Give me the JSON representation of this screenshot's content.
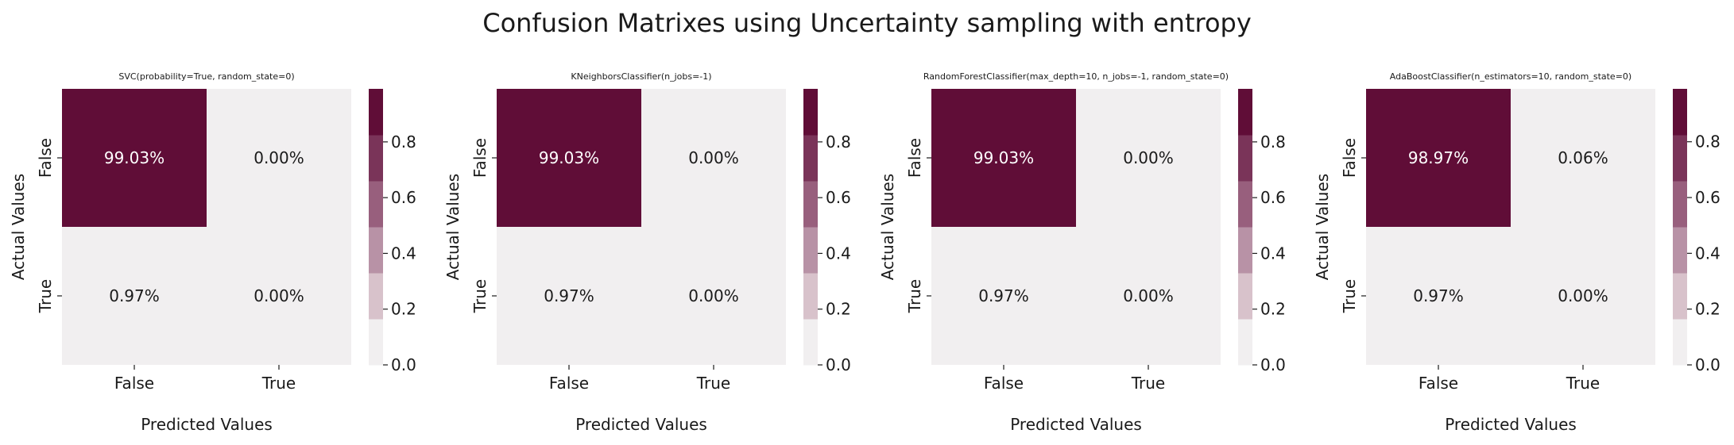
{
  "figure": {
    "title": "Confusion Matrixes using Uncertainty sampling with entropy"
  },
  "palette": {
    "low": "#f1eff0",
    "high": "#600d37",
    "bands": [
      "#f1eff0",
      "#d8c2cb",
      "#b892a6",
      "#985f7d",
      "#7a3459",
      "#600d37"
    ]
  },
  "chart_data": [
    {
      "type": "heatmap",
      "title": "SVC(probability=True, random_state=0)",
      "xlabel": "Predicted Values",
      "ylabel": "Actual Values",
      "x_categories": [
        "False",
        "True"
      ],
      "y_categories": [
        "False",
        "True"
      ],
      "values": [
        [
          0.9903,
          0.0
        ],
        [
          0.0097,
          0.0
        ]
      ],
      "cell_labels": [
        [
          "99.03%",
          "0.00%"
        ],
        [
          "0.97%",
          "0.00%"
        ]
      ],
      "colorbar": {
        "range": [
          0.0,
          0.9903
        ],
        "ticks": [
          "0.0",
          "0.2",
          "0.4",
          "0.6",
          "0.8"
        ]
      }
    },
    {
      "type": "heatmap",
      "title": "KNeighborsClassifier(n_jobs=-1)",
      "xlabel": "Predicted Values",
      "ylabel": "Actual Values",
      "x_categories": [
        "False",
        "True"
      ],
      "y_categories": [
        "False",
        "True"
      ],
      "values": [
        [
          0.9903,
          0.0
        ],
        [
          0.0097,
          0.0
        ]
      ],
      "cell_labels": [
        [
          "99.03%",
          "0.00%"
        ],
        [
          "0.97%",
          "0.00%"
        ]
      ],
      "colorbar": {
        "range": [
          0.0,
          0.9903
        ],
        "ticks": [
          "0.0",
          "0.2",
          "0.4",
          "0.6",
          "0.8"
        ]
      }
    },
    {
      "type": "heatmap",
      "title": "RandomForestClassifier(max_depth=10, n_jobs=-1, random_state=0)",
      "xlabel": "Predicted Values",
      "ylabel": "Actual Values",
      "x_categories": [
        "False",
        "True"
      ],
      "y_categories": [
        "False",
        "True"
      ],
      "values": [
        [
          0.9903,
          0.0
        ],
        [
          0.0097,
          0.0
        ]
      ],
      "cell_labels": [
        [
          "99.03%",
          "0.00%"
        ],
        [
          "0.97%",
          "0.00%"
        ]
      ],
      "colorbar": {
        "range": [
          0.0,
          0.9903
        ],
        "ticks": [
          "0.0",
          "0.2",
          "0.4",
          "0.6",
          "0.8"
        ]
      }
    },
    {
      "type": "heatmap",
      "title": "AdaBoostClassifier(n_estimators=10, random_state=0)",
      "xlabel": "Predicted Values",
      "ylabel": "Actual Values",
      "x_categories": [
        "False",
        "True"
      ],
      "y_categories": [
        "False",
        "True"
      ],
      "values": [
        [
          0.9897,
          0.0006
        ],
        [
          0.0097,
          0.0
        ]
      ],
      "cell_labels": [
        [
          "98.97%",
          "0.06%"
        ],
        [
          "0.97%",
          "0.00%"
        ]
      ],
      "colorbar": {
        "range": [
          0.0,
          0.9897
        ],
        "ticks": [
          "0.0",
          "0.2",
          "0.4",
          "0.6",
          "0.8"
        ]
      }
    }
  ]
}
